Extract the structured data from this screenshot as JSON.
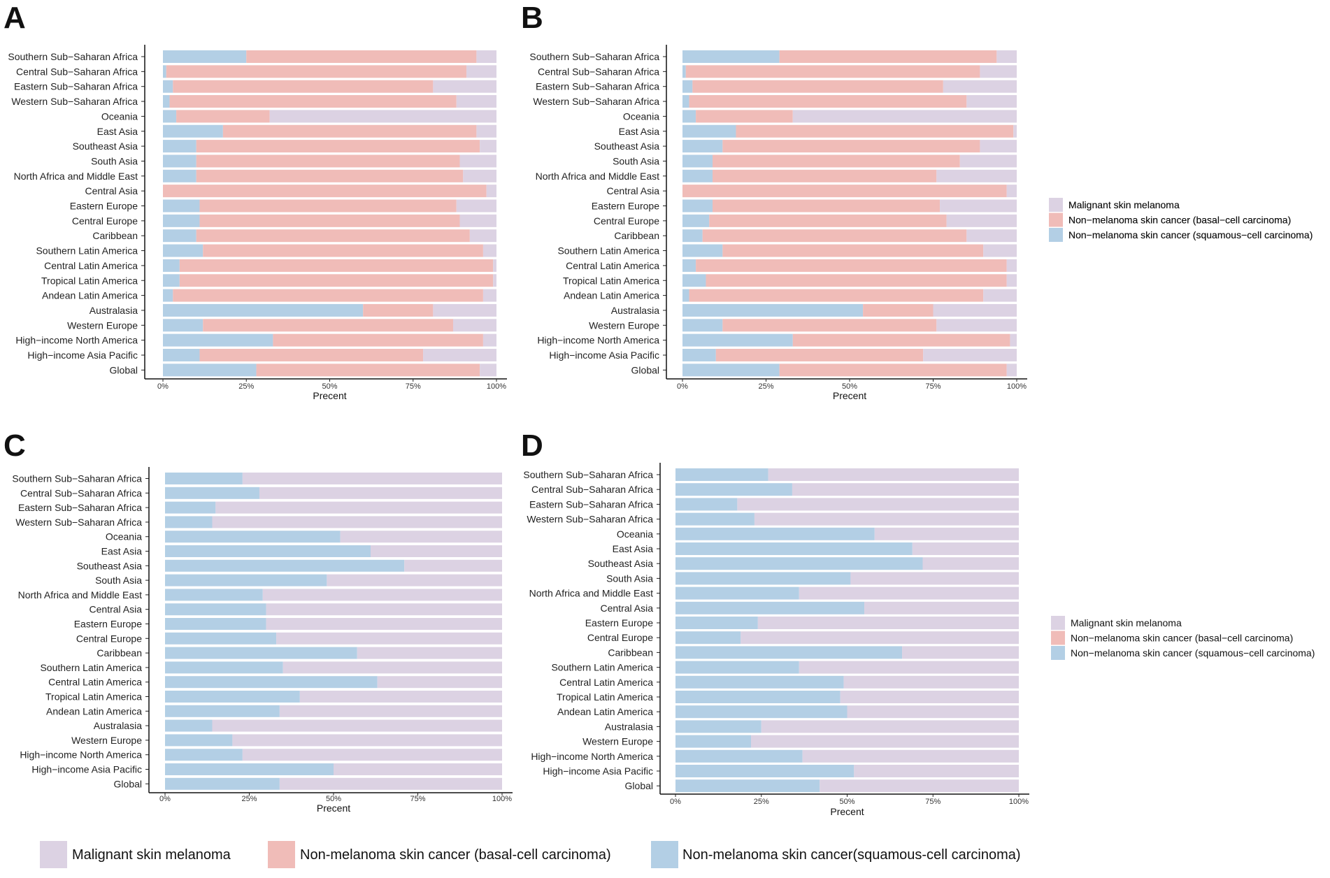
{
  "colors": {
    "melanoma": "#DCD2E3",
    "bcc": "#F0BCB8",
    "scc": "#B3CFE5"
  },
  "chart_data": [
    {
      "panel": "A",
      "type": "bar",
      "orientation": "horizontal",
      "stacked": "percent",
      "xlabel": "Precent",
      "xticks": [
        "0%",
        "25%",
        "50%",
        "75%",
        "100%"
      ],
      "legend": [
        {
          "key": "melanoma",
          "label": "Malignant skin melanoma"
        },
        {
          "key": "bcc",
          "label": "Non−melanoma skin cancer (basal−cell carcinoma)"
        },
        {
          "key": "scc",
          "label": "Non−melanoma skin cancer (squamous−cell carcinoma)"
        }
      ],
      "categories": [
        "Southern Sub−Saharan Africa",
        "Central Sub−Saharan Africa",
        "Eastern Sub−Saharan Africa",
        "Western Sub−Saharan Africa",
        "Oceania",
        "East Asia",
        "Southeast Asia",
        "South Asia",
        "North Africa and Middle East",
        "Central Asia",
        "Eastern Europe",
        "Central Europe",
        "Caribbean",
        "Southern Latin America",
        "Central Latin America",
        "Tropical Latin America",
        "Andean Latin America",
        "Australasia",
        "Western Europe",
        "High−income North America",
        "High−income Asia Pacific",
        "Global"
      ],
      "series": [
        {
          "key": "scc",
          "name": "Non−melanoma skin cancer (squamous−cell carcinoma)",
          "values": [
            25,
            1,
            3,
            2,
            4,
            18,
            10,
            10,
            10,
            0,
            11,
            11,
            10,
            12,
            5,
            5,
            3,
            60,
            12,
            33,
            11,
            28
          ]
        },
        {
          "key": "bcc",
          "name": "Non−melanoma skin cancer (basal−cell carcinoma)",
          "values": [
            69,
            90,
            78,
            86,
            28,
            76,
            85,
            79,
            80,
            97,
            77,
            78,
            82,
            84,
            94,
            94,
            93,
            21,
            75,
            63,
            67,
            67
          ]
        },
        {
          "key": "melanoma",
          "name": "Malignant skin melanoma",
          "values": [
            6,
            9,
            19,
            12,
            68,
            6,
            5,
            11,
            10,
            3,
            12,
            11,
            8,
            4,
            1,
            1,
            4,
            19,
            13,
            4,
            22,
            5
          ]
        }
      ]
    },
    {
      "panel": "B",
      "type": "bar",
      "orientation": "horizontal",
      "stacked": "percent",
      "xlabel": "Precent",
      "xticks": [
        "0%",
        "25%",
        "50%",
        "75%",
        "100%"
      ],
      "legend": [
        {
          "key": "melanoma",
          "label": "Malignant skin melanoma"
        },
        {
          "key": "bcc",
          "label": "Non−melanoma skin cancer (basal−cell carcinoma)"
        },
        {
          "key": "scc",
          "label": "Non−melanoma skin cancer (squamous−cell carcinoma)"
        }
      ],
      "categories": [
        "Southern Sub−Saharan Africa",
        "Central Sub−Saharan Africa",
        "Eastern Sub−Saharan Africa",
        "Western Sub−Saharan Africa",
        "Oceania",
        "East Asia",
        "Southeast Asia",
        "South Asia",
        "North Africa and Middle East",
        "Central Asia",
        "Eastern Europe",
        "Central Europe",
        "Caribbean",
        "Southern Latin America",
        "Central Latin America",
        "Tropical Latin America",
        "Andean Latin America",
        "Australasia",
        "Western Europe",
        "High−income North America",
        "High−income Asia Pacific",
        "Global"
      ],
      "series": [
        {
          "key": "scc",
          "name": "Non−melanoma skin cancer (squamous−cell carcinoma)",
          "values": [
            29,
            1,
            3,
            2,
            4,
            16,
            12,
            9,
            9,
            0,
            9,
            8,
            6,
            12,
            4,
            7,
            2,
            54,
            12,
            33,
            10,
            29
          ]
        },
        {
          "key": "bcc",
          "name": "Non−melanoma skin cancer (basal−cell carcinoma)",
          "values": [
            65,
            88,
            75,
            83,
            29,
            83,
            77,
            74,
            67,
            97,
            68,
            71,
            79,
            78,
            93,
            90,
            88,
            21,
            64,
            65,
            62,
            68
          ]
        },
        {
          "key": "melanoma",
          "name": "Malignant skin melanoma",
          "values": [
            6,
            11,
            22,
            15,
            67,
            1,
            11,
            17,
            24,
            3,
            23,
            21,
            15,
            10,
            3,
            3,
            10,
            25,
            24,
            2,
            28,
            3
          ]
        }
      ]
    },
    {
      "panel": "C",
      "type": "bar",
      "orientation": "horizontal",
      "stacked": "percent",
      "xlabel": "Precent",
      "xticks": [
        "0%",
        "25%",
        "50%",
        "75%",
        "100%"
      ],
      "categories": [
        "Southern Sub−Saharan Africa",
        "Central Sub−Saharan Africa",
        "Eastern Sub−Saharan Africa",
        "Western Sub−Saharan Africa",
        "Oceania",
        "East Asia",
        "Southeast Asia",
        "South Asia",
        "North Africa and Middle East",
        "Central Asia",
        "Eastern Europe",
        "Central Europe",
        "Caribbean",
        "Southern Latin America",
        "Central Latin America",
        "Tropical Latin America",
        "Andean Latin America",
        "Australasia",
        "Western Europe",
        "High−income North America",
        "High−income Asia Pacific",
        "Global"
      ],
      "series": [
        {
          "key": "scc",
          "name": "Non−melanoma skin cancer (squamous−cell carcinoma)",
          "values": [
            23,
            28,
            15,
            14,
            52,
            61,
            71,
            48,
            29,
            30,
            30,
            33,
            57,
            35,
            63,
            40,
            34,
            14,
            20,
            23,
            50,
            34
          ]
        },
        {
          "key": "melanoma",
          "name": "Malignant skin melanoma",
          "values": [
            77,
            72,
            85,
            86,
            48,
            39,
            29,
            52,
            71,
            70,
            70,
            67,
            43,
            65,
            37,
            60,
            66,
            86,
            80,
            77,
            50,
            66
          ]
        }
      ]
    },
    {
      "panel": "D",
      "type": "bar",
      "orientation": "horizontal",
      "stacked": "percent",
      "xlabel": "Precent",
      "xticks": [
        "0%",
        "25%",
        "50%",
        "75%",
        "100%"
      ],
      "legend": [
        {
          "key": "melanoma",
          "label": "Malignant skin melanoma"
        },
        {
          "key": "bcc",
          "label": "Non−melanoma skin cancer (basal−cell carcinoma)"
        },
        {
          "key": "scc",
          "label": "Non−melanoma skin cancer (squamous−cell carcinoma)"
        }
      ],
      "categories": [
        "Southern Sub−Saharan Africa",
        "Central Sub−Saharan Africa",
        "Eastern Sub−Saharan Africa",
        "Western Sub−Saharan Africa",
        "Oceania",
        "East Asia",
        "Southeast Asia",
        "South Asia",
        "North Africa and Middle East",
        "Central Asia",
        "Eastern Europe",
        "Central Europe",
        "Caribbean",
        "Southern Latin America",
        "Central Latin America",
        "Tropical Latin America",
        "Andean Latin America",
        "Australasia",
        "Western Europe",
        "High−income North America",
        "High−income Asia Pacific",
        "Global"
      ],
      "series": [
        {
          "key": "scc",
          "name": "Non−melanoma skin cancer (squamous−cell carcinoma)",
          "values": [
            27,
            34,
            18,
            23,
            58,
            69,
            72,
            51,
            36,
            55,
            24,
            19,
            66,
            36,
            49,
            48,
            50,
            25,
            22,
            37,
            52,
            42
          ]
        },
        {
          "key": "melanoma",
          "name": "Malignant skin melanoma",
          "values": [
            73,
            66,
            82,
            77,
            42,
            31,
            28,
            49,
            64,
            45,
            76,
            81,
            34,
            64,
            51,
            52,
            50,
            75,
            78,
            63,
            48,
            58
          ]
        }
      ]
    }
  ],
  "bottom_legend": [
    {
      "key": "melanoma",
      "label": "Malignant skin melanoma"
    },
    {
      "key": "bcc",
      "label": "Non-melanoma skin cancer (basal-cell carcinoma)"
    },
    {
      "key": "scc",
      "label": "Non-melanoma skin cancer(squamous-cell carcinoma)"
    }
  ]
}
